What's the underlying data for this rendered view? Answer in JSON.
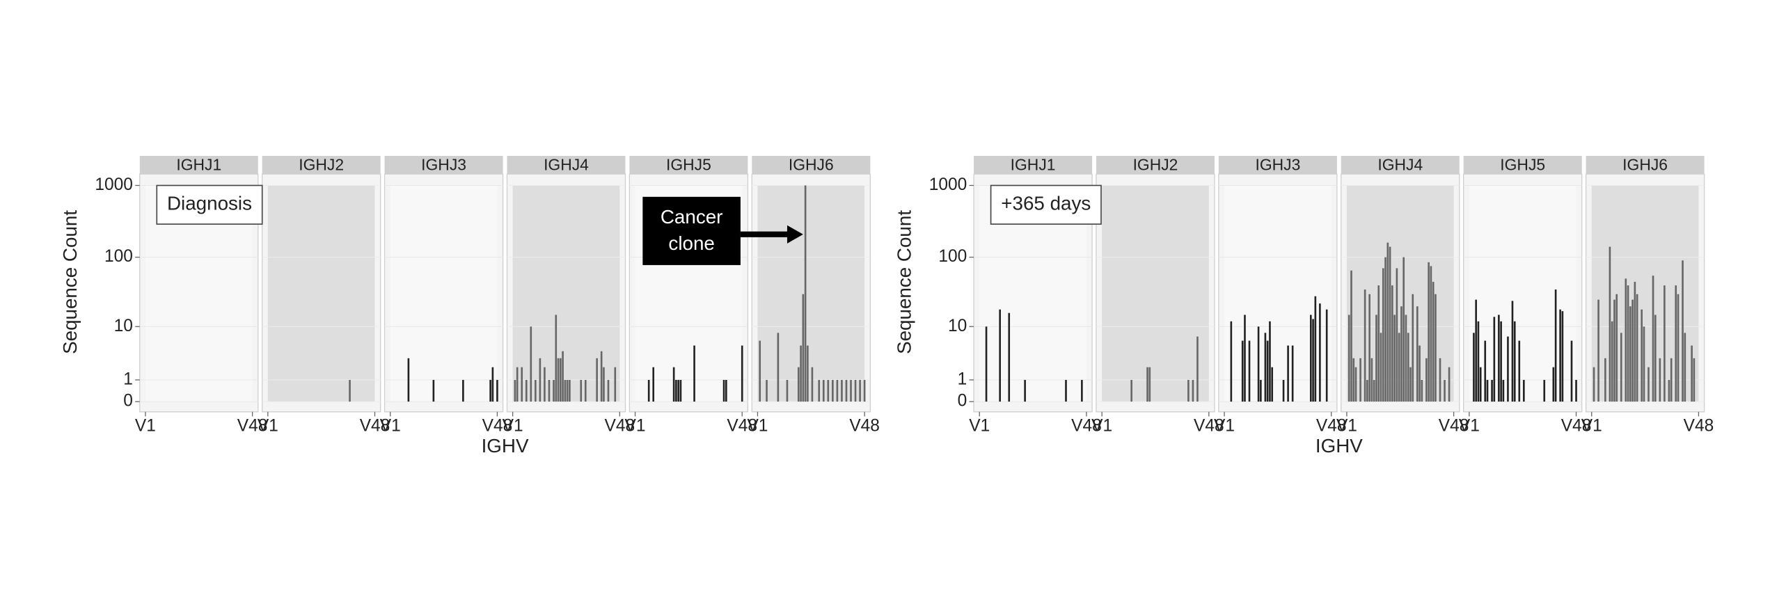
{
  "chart_data": [
    {
      "type": "bar",
      "annotation": "Diagnosis",
      "callout": [
        "Cancer",
        "clone"
      ],
      "y_label": "Sequence Count",
      "x_label": "IGHV",
      "y_scale": "log1p",
      "ylim": [
        0,
        1000
      ],
      "yticks": [
        0,
        1,
        10,
        100,
        1000
      ],
      "xlim": [
        1,
        48
      ],
      "xticks": [
        {
          "value": 1,
          "label": "V1"
        },
        {
          "value": 48,
          "label": "V48"
        }
      ],
      "facets": [
        {
          "name": "IGHJ1",
          "shaded": false,
          "color": "#222222",
          "x": [],
          "values": []
        },
        {
          "name": "IGHJ2",
          "shaded": true,
          "color": "#666666",
          "x": [
            37
          ],
          "values": [
            1
          ]
        },
        {
          "name": "IGHJ3",
          "shaded": false,
          "color": "#222222",
          "x": [
            9,
            20,
            33,
            45,
            46,
            48
          ],
          "values": [
            3,
            1,
            1,
            1,
            2,
            1
          ]
        },
        {
          "name": "IGHJ4",
          "shaded": true,
          "color": "#666666",
          "x": [
            2,
            3,
            5,
            7,
            9,
            11,
            13,
            15,
            17,
            19,
            20,
            21,
            22,
            23,
            24,
            25,
            26,
            31,
            33,
            38,
            40,
            41,
            43,
            46
          ],
          "values": [
            1,
            2,
            2,
            1,
            10,
            1,
            3,
            2,
            1,
            1,
            15,
            3,
            3,
            4,
            1,
            1,
            1,
            1,
            1,
            3,
            4,
            2,
            1,
            2
          ]
        },
        {
          "name": "IGHJ5",
          "shaded": false,
          "color": "#222222",
          "x": [
            7,
            9,
            18,
            19,
            20,
            21,
            27,
            40,
            41,
            48
          ],
          "values": [
            1,
            2,
            2,
            1,
            1,
            1,
            5,
            1,
            1,
            5
          ]
        },
        {
          "name": "IGHJ6",
          "shaded": true,
          "color": "#666666",
          "x": [
            2,
            5,
            10,
            14,
            19,
            20,
            21,
            22,
            23,
            25,
            28,
            30,
            32,
            34,
            36,
            38,
            40,
            42,
            44,
            46,
            48
          ],
          "values": [
            6,
            1,
            8,
            1,
            2,
            5,
            30,
            1000,
            5,
            2,
            1,
            1,
            1,
            1,
            1,
            1,
            1,
            1,
            1,
            1,
            1
          ]
        }
      ]
    },
    {
      "type": "bar",
      "annotation": "+365 days",
      "y_label": "Sequence Count",
      "x_label": "IGHV",
      "y_scale": "log1p",
      "ylim": [
        0,
        1000
      ],
      "yticks": [
        0,
        1,
        10,
        100,
        1000
      ],
      "xlim": [
        1,
        48
      ],
      "xticks": [
        {
          "value": 1,
          "label": "V1"
        },
        {
          "value": 48,
          "label": "V48"
        }
      ],
      "facets": [
        {
          "name": "IGHJ1",
          "shaded": false,
          "color": "#222222",
          "x": [
            4,
            10,
            14,
            21,
            39,
            46
          ],
          "values": [
            10,
            18,
            16,
            1,
            1,
            1
          ]
        },
        {
          "name": "IGHJ2",
          "shaded": true,
          "color": "#666666",
          "x": [
            14,
            21,
            22,
            39,
            41,
            43
          ],
          "values": [
            1,
            2,
            2,
            1,
            1,
            7
          ]
        },
        {
          "name": "IGHJ3",
          "shaded": false,
          "color": "#222222",
          "x": [
            4,
            9,
            10,
            12,
            16,
            17,
            19,
            20,
            21,
            22,
            27,
            29,
            31,
            39,
            40,
            41,
            43,
            46
          ],
          "values": [
            12,
            6,
            15,
            6,
            10,
            1,
            8,
            6,
            12,
            2,
            1,
            5,
            5,
            15,
            13,
            28,
            22,
            18
          ]
        },
        {
          "name": "IGHJ4",
          "shaded": true,
          "color": "#666666",
          "x": [
            2,
            3,
            4,
            5,
            7,
            9,
            10,
            11,
            12,
            13,
            14,
            15,
            16,
            17,
            18,
            19,
            20,
            21,
            22,
            23,
            24,
            25,
            26,
            27,
            28,
            29,
            30,
            32,
            33,
            34,
            36,
            37,
            38,
            39,
            40,
            42,
            44,
            46
          ],
          "values": [
            15,
            65,
            3,
            2,
            3,
            35,
            1,
            30,
            3,
            1,
            15,
            40,
            8,
            70,
            100,
            160,
            140,
            40,
            15,
            70,
            8,
            20,
            100,
            15,
            8,
            2,
            30,
            20,
            5,
            1,
            3,
            85,
            75,
            45,
            30,
            3,
            1,
            2
          ]
        },
        {
          "name": "IGHJ5",
          "shaded": false,
          "color": "#222222",
          "x": [
            3,
            4,
            5,
            6,
            8,
            9,
            11,
            12,
            14,
            15,
            16,
            18,
            20,
            21,
            23,
            25,
            34,
            38,
            39,
            41,
            42,
            46,
            48
          ],
          "values": [
            8,
            25,
            12,
            2,
            6,
            1,
            1,
            14,
            15,
            12,
            1,
            7,
            24,
            12,
            6,
            1,
            1,
            2,
            35,
            18,
            17,
            6,
            1
          ]
        },
        {
          "name": "IGHJ6",
          "shaded": true,
          "color": "#666666",
          "x": [
            2,
            4,
            7,
            9,
            10,
            11,
            12,
            14,
            16,
            17,
            18,
            19,
            20,
            21,
            23,
            24,
            26,
            28,
            29,
            31,
            33,
            35,
            36,
            38,
            39,
            41,
            42,
            45,
            46
          ],
          "values": [
            2,
            25,
            3,
            140,
            12,
            25,
            30,
            8,
            50,
            40,
            20,
            25,
            45,
            30,
            18,
            10,
            2,
            55,
            15,
            3,
            40,
            1,
            3,
            40,
            30,
            90,
            8,
            5,
            3
          ]
        }
      ]
    }
  ]
}
